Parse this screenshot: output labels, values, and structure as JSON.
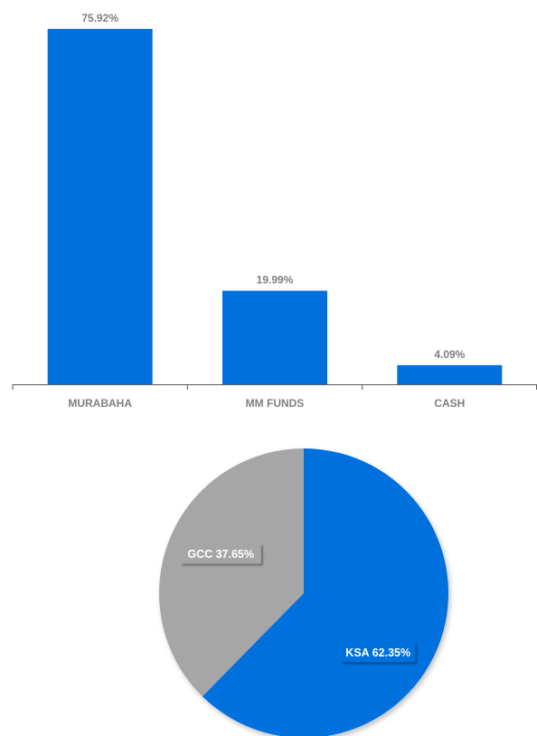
{
  "chart_data": [
    {
      "type": "bar",
      "categories": [
        "MURABAHA",
        "MM FUNDS",
        "CASH"
      ],
      "values": [
        75.92,
        19.99,
        4.09
      ],
      "value_labels": [
        "75.92%",
        "19.99%",
        "4.09%"
      ],
      "title": "",
      "xlabel": "",
      "ylabel": "",
      "ylim": [
        0,
        75.92
      ],
      "grid": false,
      "colors": {
        "bar": "#0070dd",
        "axis": "#595959",
        "label": "#7f7f7f"
      }
    },
    {
      "type": "pie",
      "labels": [
        "KSA",
        "GCC"
      ],
      "values": [
        62.35,
        37.65
      ],
      "slice_labels": [
        "KSA 62.35%",
        "GCC  37.65%"
      ],
      "colors": [
        "#0070dd",
        "#a6a6a6"
      ],
      "title": ""
    }
  ]
}
